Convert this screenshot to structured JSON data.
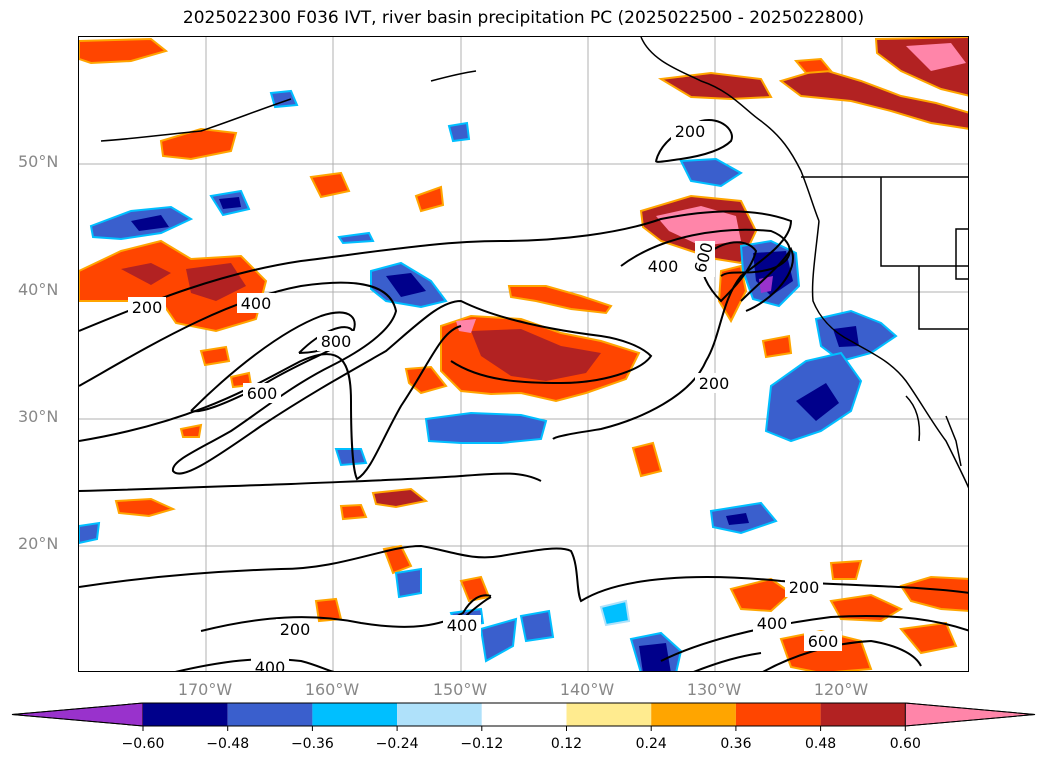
{
  "title": "2025022300 F036 IVT, river basin precipitation PC (2025022500 - 2025022800)",
  "lat_labels": [
    "50°N",
    "40°N",
    "30°N",
    "20°N"
  ],
  "lon_labels": [
    "170°W",
    "160°W",
    "150°W",
    "140°W",
    "130°W",
    "120°W"
  ],
  "contour_labels": [
    "200",
    "400",
    "800",
    "600",
    "400",
    "600",
    "400",
    "200",
    "200",
    "200",
    "400",
    "600",
    "200",
    "400"
  ],
  "colorbar": {
    "ticks": [
      "−0.60",
      "−0.48",
      "−0.36",
      "−0.24",
      "−0.12",
      "0.12",
      "0.24",
      "0.36",
      "0.48",
      "0.60"
    ],
    "colors": [
      "#9932cc",
      "#00008b",
      "#3a5fcd",
      "#00bfff",
      "#afe1fa",
      "#ffffff",
      "#ffeb8f",
      "#ffa500",
      "#ff4500",
      "#b22222",
      "#ff85a9"
    ]
  }
}
